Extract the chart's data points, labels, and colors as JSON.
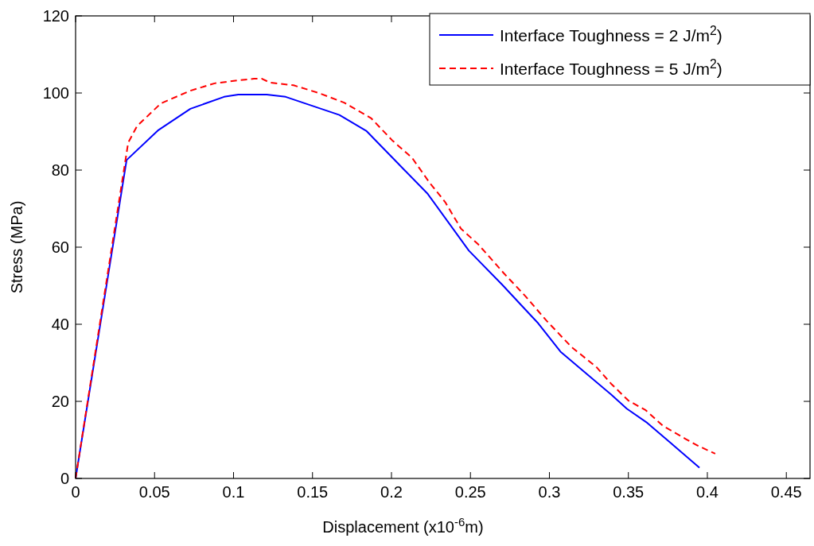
{
  "chart_data": {
    "type": "line",
    "xlabel": "Displacement (x10$^{-6}$m)",
    "ylabel": "Stress (MPa)",
    "xlim": [
      0,
      0.465
    ],
    "xticks": [
      0,
      0.05,
      0.1,
      0.15,
      0.2,
      0.25,
      0.3,
      0.35,
      0.4,
      0.45
    ],
    "ylim": [
      0,
      120
    ],
    "yticks": [
      0,
      20,
      40,
      60,
      80,
      100,
      120
    ],
    "grid": false,
    "legend": "top right",
    "series": [
      {
        "name": "Interface Toughness = 2 J/m$^{2}$)",
        "color": "#0000ff",
        "line_style": "solid",
        "x": [
          0,
          0.0323,
          0.0525,
          0.0727,
          0.094,
          0.103,
          0.121,
          0.133,
          0.167,
          0.184,
          0.208,
          0.223,
          0.249,
          0.27,
          0.285,
          0.293,
          0.307,
          0.322,
          0.339,
          0.349,
          0.362,
          0.376,
          0.395
        ],
        "values": [
          0,
          82.6,
          90.4,
          95.9,
          99,
          99.6,
          99.6,
          99,
          94.3,
          90.2,
          80.1,
          73.8,
          59.1,
          50.3,
          43.7,
          40.2,
          32.9,
          27.7,
          21.8,
          18.1,
          14.4,
          9.5,
          2.8
        ]
      },
      {
        "name": "Interface Toughness = 5 J/m$^{2}$)",
        "color": "#ff0000",
        "line_style": "dashed",
        "x": [
          0,
          0.0333,
          0.0389,
          0.054,
          0.0727,
          0.088,
          0.103,
          0.113,
          0.118,
          0.123,
          0.138,
          0.154,
          0.17,
          0.187,
          0.2005,
          0.213,
          0.224,
          0.234,
          0.244,
          0.255,
          0.271,
          0.285,
          0.298,
          0.314,
          0.324,
          0.33,
          0.339,
          0.35,
          0.361,
          0.372,
          0.386,
          0.394,
          0.405
        ],
        "values": [
          0,
          87.1,
          91.4,
          97.3,
          100.6,
          102.5,
          103.3,
          103.7,
          103.7,
          102.7,
          102,
          100,
          97.5,
          93.5,
          87.7,
          83.2,
          76.8,
          71.7,
          64.8,
          60.7,
          53.3,
          47.2,
          41,
          34.1,
          30.8,
          28.8,
          24.6,
          20.2,
          17.7,
          13.6,
          10.3,
          8.5,
          6.4
        ]
      }
    ]
  }
}
